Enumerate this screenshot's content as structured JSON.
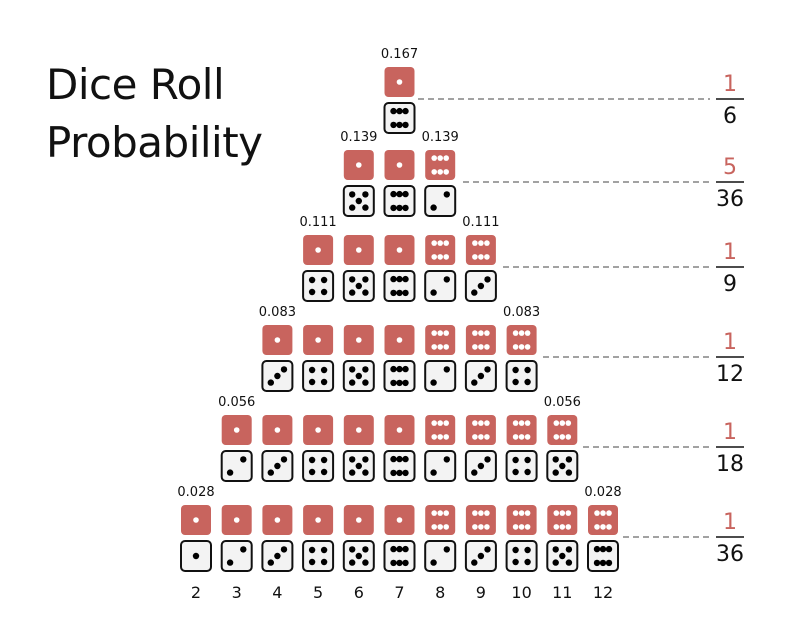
{
  "title": {
    "line1": "Dice Roll",
    "line2": "Probability"
  },
  "colors": {
    "red_die": "#c8645e",
    "white_die": "#f3f3f3",
    "numerator": "#c8645e"
  },
  "sum_labels": [
    "2",
    "3",
    "4",
    "5",
    "6",
    "7",
    "8",
    "9",
    "10",
    "11",
    "12"
  ],
  "rows": [
    {
      "probability": "0.167",
      "numerator": "1",
      "denominator": "6",
      "pairs": [
        [
          1,
          6
        ],
        [
          2,
          5
        ],
        [
          3,
          4
        ],
        [
          4,
          3
        ],
        [
          5,
          2
        ],
        [
          6,
          1
        ]
      ],
      "visible_sums": [
        7
      ],
      "probability_sums": [
        7
      ]
    },
    {
      "probability": "0.139",
      "numerator": "5",
      "denominator": "36",
      "pairs": [
        [
          1,
          5
        ],
        [
          2,
          4
        ],
        [
          3,
          3
        ],
        [
          4,
          2
        ],
        [
          5,
          1
        ]
      ],
      "visible_sums": [
        6,
        7,
        8
      ],
      "probability_sums": [
        6,
        8
      ]
    },
    {
      "probability": "0.111",
      "numerator": "1",
      "denominator": "9",
      "pairs": [
        [
          1,
          4
        ],
        [
          2,
          3
        ],
        [
          3,
          2
        ],
        [
          4,
          1
        ]
      ],
      "visible_sums": [
        5,
        6,
        7,
        8,
        9
      ],
      "probability_sums": [
        5,
        9
      ]
    },
    {
      "probability": "0.083",
      "numerator": "1",
      "denominator": "12",
      "pairs": [
        [
          1,
          3
        ],
        [
          2,
          2
        ],
        [
          3,
          1
        ]
      ],
      "visible_sums": [
        4,
        5,
        6,
        7,
        8,
        9,
        10
      ],
      "probability_sums": [
        4,
        10
      ]
    },
    {
      "probability": "0.056",
      "numerator": "1",
      "denominator": "18",
      "pairs": [
        [
          1,
          2
        ],
        [
          2,
          1
        ]
      ],
      "visible_sums": [
        3,
        4,
        5,
        6,
        7,
        8,
        9,
        10,
        11
      ],
      "probability_sums": [
        3,
        11
      ]
    },
    {
      "probability": "0.028",
      "numerator": "1",
      "denominator": "36",
      "pairs": [
        [
          1,
          1
        ]
      ],
      "visible_sums": [
        2,
        3,
        4,
        5,
        6,
        7,
        8,
        9,
        10,
        11,
        12
      ],
      "probability_sums": [
        2,
        12
      ]
    }
  ]
}
